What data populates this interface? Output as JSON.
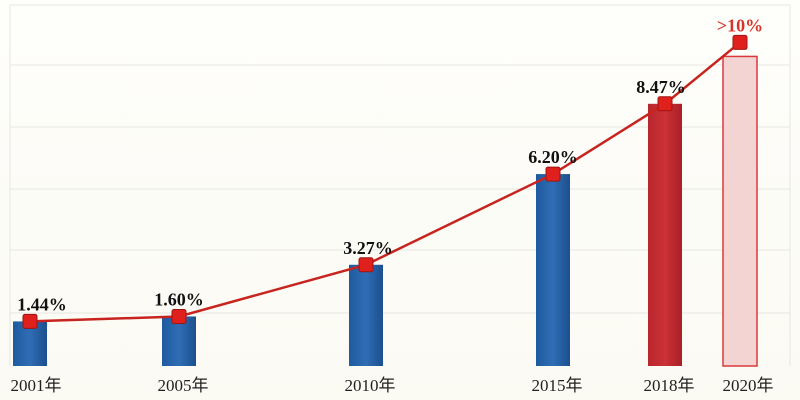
{
  "chart_data": {
    "type": "bar",
    "categories": [
      "2001年",
      "2005年",
      "2010年",
      "2015年",
      "2018年",
      "2020年"
    ],
    "series": [
      {
        "values": [
          1.44,
          1.6,
          3.27,
          6.2,
          8.47,
          10
        ],
        "line_values": [
          1.44,
          1.6,
          3.27,
          6.2,
          8.47,
          10
        ],
        "data_labels": [
          "1.44%",
          "1.60%",
          "3.27%",
          "6.20%",
          "8.47%",
          ">10%"
        ]
      }
    ],
    "ylim": [
      0,
      11.5
    ],
    "grid": true,
    "colors": {
      "bar_blue": "#2f6db5",
      "bar_red": "#cc3238",
      "bar_target": "#f4d3d3",
      "target_stroke": "#d83a3a",
      "line": "#c8241f",
      "marker": "#e0201d",
      "grid": "#e7e7e2",
      "highlight_label": "#d8342b"
    }
  }
}
